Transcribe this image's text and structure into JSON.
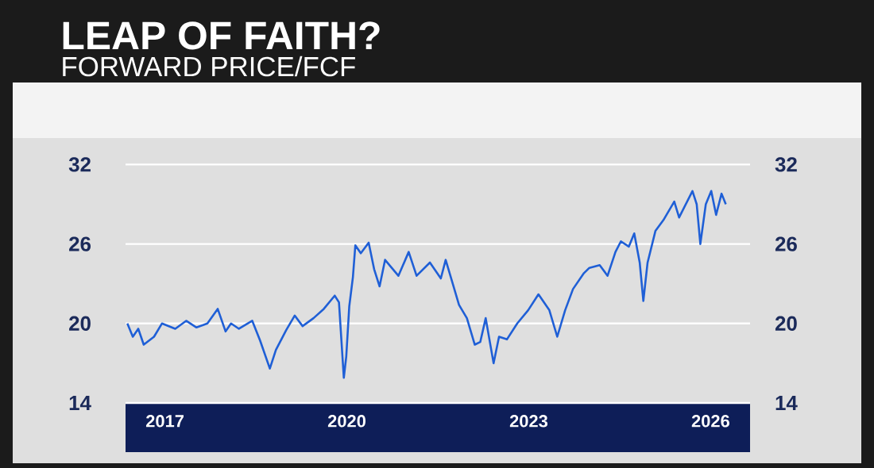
{
  "chart_data": {
    "type": "line",
    "title": "LEAP OF FAITH?",
    "subtitle": "FORWARD PRICE/FCF",
    "color": "#1f5fd6",
    "line_style": "solid",
    "grid": "y",
    "x": [
      2016.38,
      2016.47,
      2016.56,
      2016.65,
      2016.82,
      2016.95,
      2017.17,
      2017.35,
      2017.52,
      2017.7,
      2017.87,
      2018.0,
      2018.09,
      2018.22,
      2018.44,
      2018.57,
      2018.73,
      2018.83,
      2019.0,
      2019.14,
      2019.27,
      2019.45,
      2019.62,
      2019.8,
      2019.87,
      2019.95,
      2019.99,
      2020.04,
      2020.1,
      2020.14,
      2020.23,
      2020.36,
      2020.45,
      2020.54,
      2020.63,
      2020.85,
      2021.02,
      2021.15,
      2021.37,
      2021.55,
      2021.63,
      2021.76,
      2021.85,
      2021.98,
      2022.11,
      2022.2,
      2022.29,
      2022.42,
      2022.51,
      2022.64,
      2022.81,
      2022.99,
      2023.16,
      2023.34,
      2023.47,
      2023.6,
      2023.73,
      2023.91,
      2024.0,
      2024.17,
      2024.3,
      2024.43,
      2024.52,
      2024.65,
      2024.74,
      2024.83,
      2024.89,
      2024.96,
      2025.09,
      2025.22,
      2025.4,
      2025.48,
      2025.7,
      2025.77,
      2025.83,
      2025.92,
      2026.01,
      2026.09,
      2026.18,
      2026.25
    ],
    "values": [
      20.0,
      19.0,
      19.6,
      18.4,
      19.0,
      20.0,
      19.6,
      20.2,
      19.7,
      20.0,
      21.1,
      19.4,
      20.0,
      19.6,
      20.2,
      18.7,
      16.6,
      18.0,
      19.5,
      20.6,
      19.8,
      20.4,
      21.1,
      22.1,
      21.6,
      15.9,
      17.5,
      21.3,
      23.5,
      25.9,
      25.3,
      26.1,
      24.1,
      22.8,
      24.8,
      23.6,
      25.4,
      23.6,
      24.6,
      23.4,
      24.8,
      22.8,
      21.4,
      20.4,
      18.4,
      18.6,
      20.4,
      17.0,
      19.0,
      18.8,
      20.0,
      21.0,
      22.2,
      21.0,
      19.0,
      21.0,
      22.6,
      23.8,
      24.2,
      24.4,
      23.6,
      25.4,
      26.2,
      25.8,
      26.8,
      24.6,
      21.7,
      24.6,
      27.0,
      27.8,
      29.2,
      28.0,
      30.0,
      29.0,
      26.0,
      29.0,
      30.0,
      28.2,
      29.8,
      29.0
    ],
    "xlim": [
      2016.35,
      2026.65
    ],
    "xticks": [
      2017,
      2020,
      2023,
      2026
    ],
    "ylim": [
      14,
      34
    ],
    "yticks": [
      14,
      20,
      26,
      32
    ],
    "y2lim": [
      14,
      34
    ],
    "y2ticks": [
      14,
      20,
      26,
      32
    ]
  }
}
